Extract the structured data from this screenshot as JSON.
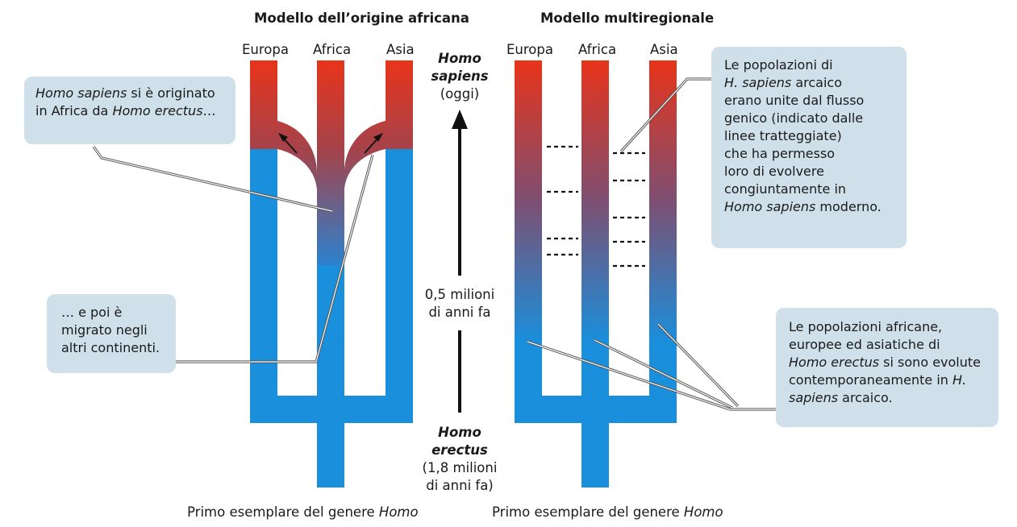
{
  "diagram": {
    "left_title": "Modello dell’origine africana",
    "right_title": "Modello multiregionale",
    "left_regions": [
      "Europa",
      "Africa",
      "Asia"
    ],
    "right_regions": [
      "Europa",
      "Africa",
      "Asia"
    ],
    "timeline": {
      "top_label_1": "Homo",
      "top_label_2": "sapiens",
      "top_label_3": "(oggi)",
      "mid_label_1": "0,5 milioni",
      "mid_label_2": "di anni fa",
      "bottom_label_1": "Homo",
      "bottom_label_2": "erectus",
      "bottom_label_3": "(1,8 milioni",
      "bottom_label_4": "di anni fa)"
    },
    "bottom_caption_left_prefix": "Primo esemplare del genere ",
    "bottom_caption_left_italic": "Homo",
    "bottom_caption_right_prefix": "Primo esemplare del genere ",
    "bottom_caption_right_italic": "Homo",
    "callout_origin": {
      "line1_italic": "Homo sapiens",
      "line1_rest": " si è originato",
      "line2_prefix": "in Africa da ",
      "line2_italic": "Homo erectus",
      "line2_suffix": "…"
    },
    "callout_migration": {
      "line1": "… e poi è",
      "line2": "migrato negli",
      "line3": "altri continenti."
    },
    "callout_gene_flow": {
      "line1": "Le popolazioni di",
      "line2_italic": "H. sapiens",
      "line2_rest": " arcaico",
      "line3": "erano unite dal flusso",
      "line4": "genico (indicato dalle",
      "line5": "linee tratteggiate)",
      "line6": "che ha permesso",
      "line7": "loro di evolvere",
      "line8": "congiuntamente in",
      "line9_italic": "Homo sapiens",
      "line9_rest": " moderno."
    },
    "callout_parallel": {
      "line1": "Le popolazioni africane,",
      "line2": "europee ed asiatiche di",
      "line3_italic": "Homo erectus",
      "line3_rest": " si sono evolute",
      "line4_prefix": "contemporaneamente in ",
      "line4_italic": "H.",
      "line5_italic": "sapiens",
      "line5_rest": " arcaico."
    },
    "colors": {
      "erectus_blue": "#1a8fdc",
      "sapiens_red": "#e8341a",
      "callout_bg": "#cfe0ea"
    }
  }
}
